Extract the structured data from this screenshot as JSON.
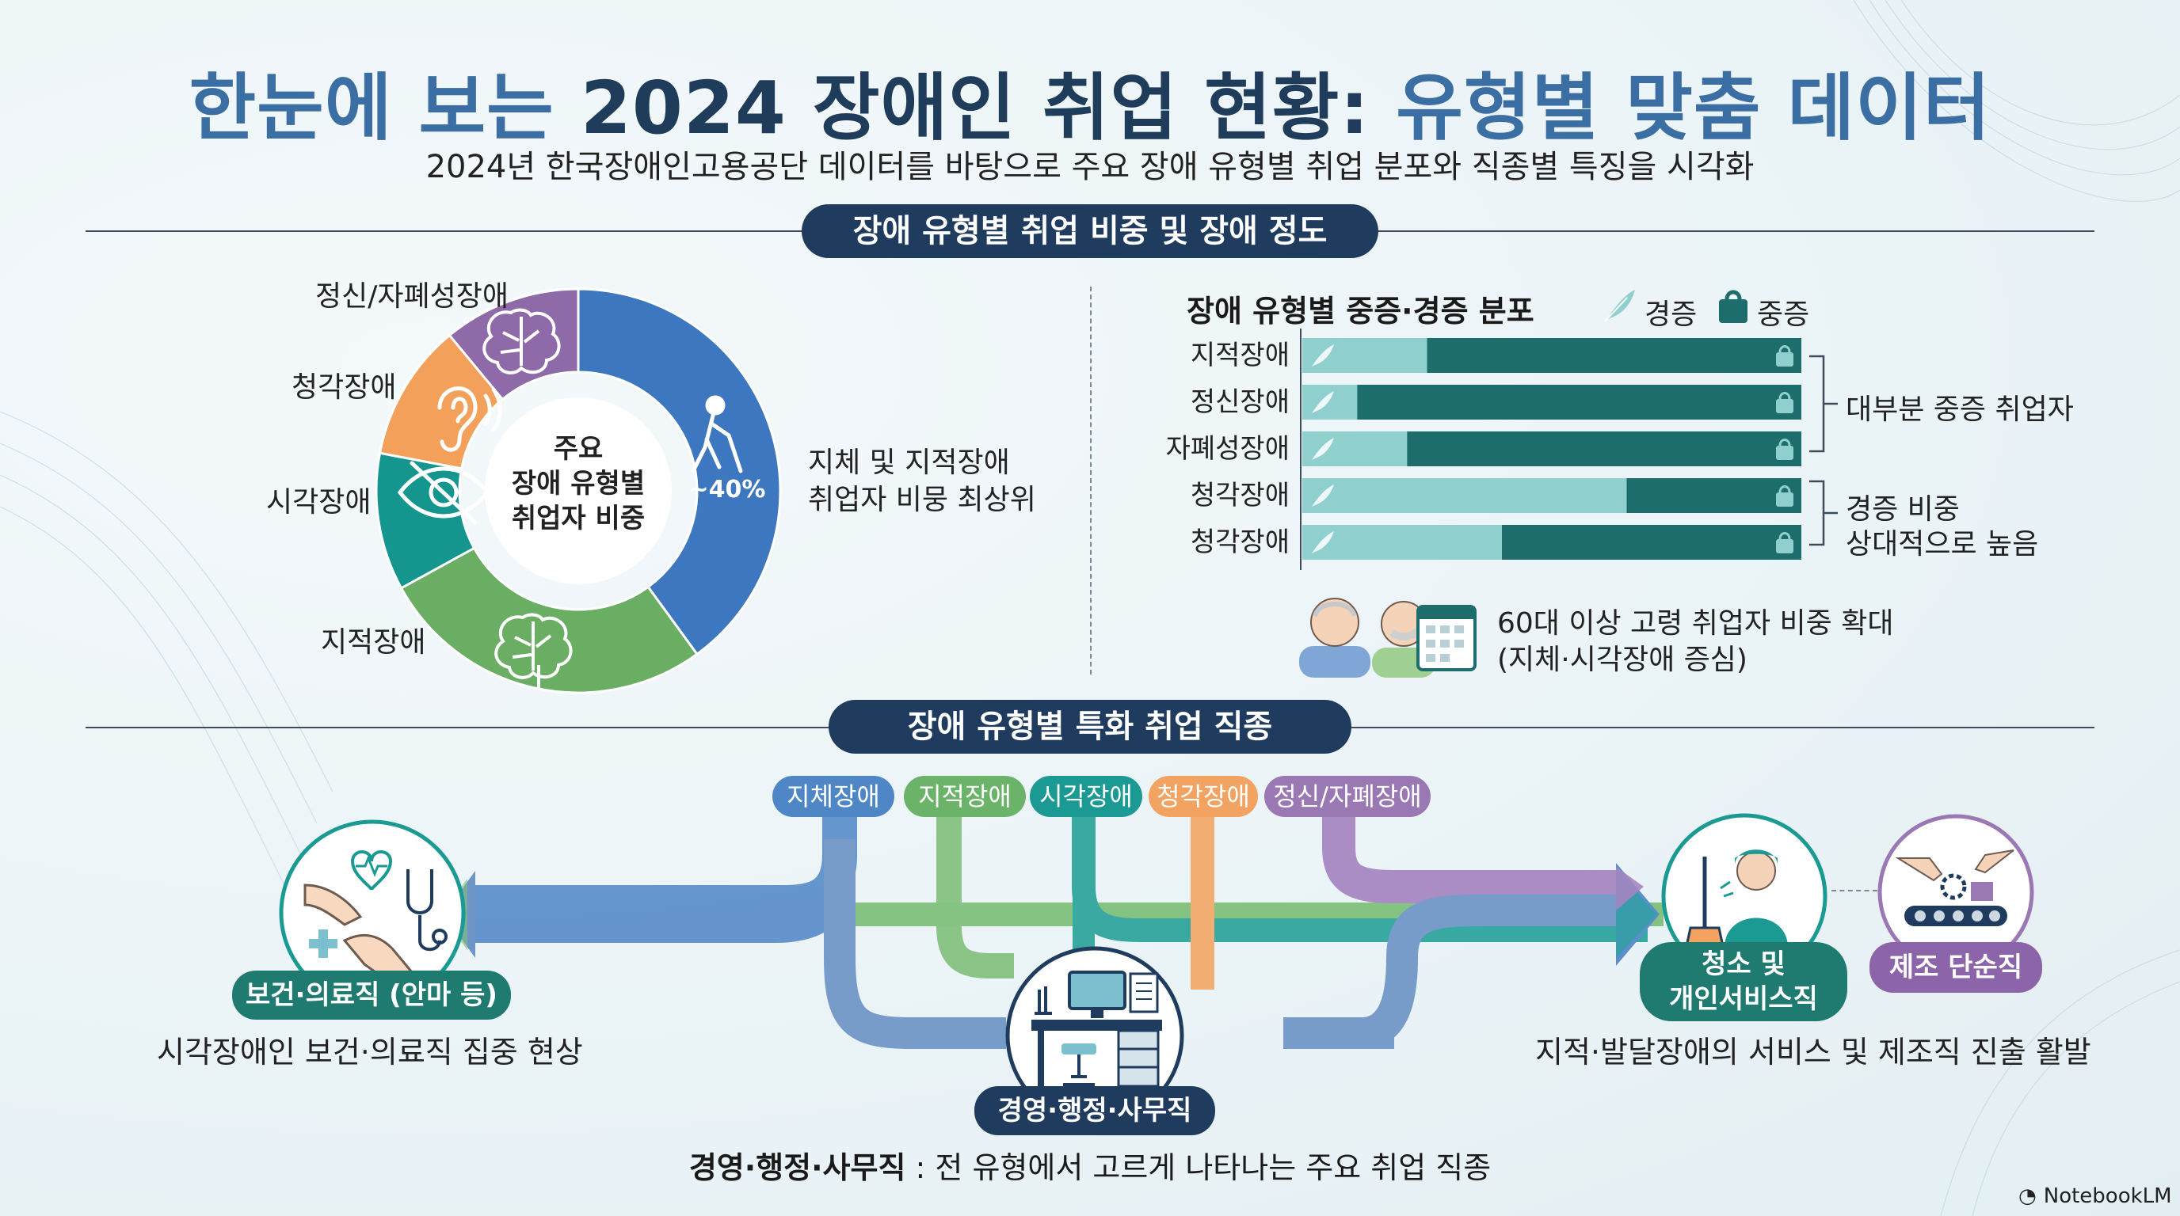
{
  "header": {
    "title_part1": "한눈에 보는 ",
    "title_part2": "2024 장애인 취업 현황: ",
    "title_part3": "유형별 맞춤 데이터",
    "subtitle": "2024년 한국장애인고용공단 데이터를 바탕으로 주요 장애 유형별 취업 분포와 직종별 특징을 시각화"
  },
  "section1": {
    "pill": "장애 유형별 취업 비중 및 장애 정도",
    "donut": {
      "center_line1": "주요",
      "center_line2": "장애 유형별",
      "center_line3": "취업자 비중",
      "physical_pct": "~40%",
      "labels": {
        "mental": "정신/자폐성장애",
        "hearing": "청각장애",
        "visual": "시각장애",
        "intellectual": "지적장애"
      },
      "callout_line1": "지체 및 지적장애",
      "callout_line2": "취업자 비뭉 최상위"
    },
    "severity": {
      "title": "장애 유형별 중증·경증 분포",
      "legend_mild": "경증",
      "legend_severe": "중증",
      "group1_label": "대부분 중증 취업자",
      "group2_line1": "경증 비중",
      "group2_line2": "상대적으로 높음"
    },
    "elderly": {
      "line1": "60대 이상 고령 취업자 비중 확대",
      "line2": "(지체·시각장애 증심)"
    }
  },
  "chart_data": {
    "type": "bar",
    "stacked": true,
    "orientation": "horizontal",
    "title": "장애 유형별 중증·경증 분포",
    "categories": [
      "지적장애",
      "정신장애",
      "자폐성장애",
      "청각장애",
      "청각장애"
    ],
    "series": [
      {
        "name": "경증",
        "values": [
          25,
          11,
          21,
          65,
          40
        ],
        "color": "#8fcfcd"
      },
      {
        "name": "중증",
        "values": [
          75,
          89,
          79,
          35,
          60
        ],
        "color": "#1c6d6b"
      }
    ],
    "xlim": [
      0,
      100
    ]
  },
  "donut_data": {
    "type": "pie",
    "series": [
      {
        "name": "지체장애",
        "value": 40,
        "color": "#3d77bf"
      },
      {
        "name": "지적장애",
        "value": 27,
        "color": "#6aae64"
      },
      {
        "name": "시각장애",
        "value": 11,
        "color": "#14968e"
      },
      {
        "name": "청각장애",
        "value": 11,
        "color": "#f3a05a"
      },
      {
        "name": "정신/자폐성장애",
        "value": 11,
        "color": "#8f6aa8"
      }
    ]
  },
  "section2": {
    "pill": "장애 유형별 특화 취업 직종",
    "tags": {
      "physical": "지체장애",
      "intellectual": "지적장애",
      "visual": "시각장애",
      "hearing": "청각장애",
      "mental": "정신/자폐장애"
    },
    "health_label": "보건·의료직 (안마 등)",
    "health_caption": "시각장애인 보건·의료직 집중 현상",
    "office_label": "경영·행정·사무직",
    "office_caption_bold": "경영·행정·사무직",
    "office_caption_rest": " : 전 유형에서 고르게 나타나는 주요 취업 직종",
    "cleaning_line1": "청소 및",
    "cleaning_line2": "개인서비스직",
    "manufacturing_label": "제조 단순직",
    "right_caption": "지적·발달장애의 서비스 및 제조직 진출 활발"
  },
  "colors": {
    "physical": "#4f86c6",
    "intellectual": "#6cb36a",
    "visual": "#1a9a92",
    "hearing": "#f2a361",
    "mental": "#9a78b4",
    "navy": "#1f3c5e",
    "teal_dark": "#1c6d6b",
    "teal_light": "#8fcfcd"
  },
  "watermark": "NotebookLM"
}
